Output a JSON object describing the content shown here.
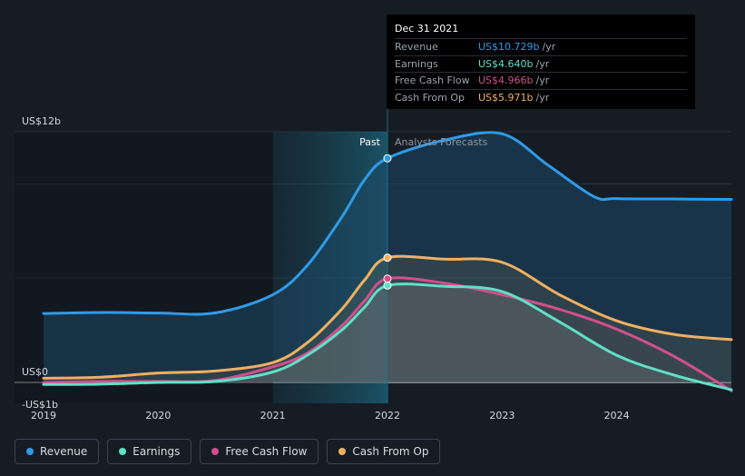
{
  "chart_data": {
    "type": "line",
    "x_ticks": [
      "2019",
      "2020",
      "2021",
      "2022",
      "2023",
      "2024"
    ],
    "y_labels": {
      "top": "US$12b",
      "zero": "US$0",
      "bottom": "-US$1b"
    },
    "ylim": [
      -1,
      12
    ],
    "divider_labels": {
      "past": "Past",
      "forecast": "Analysts Forecasts"
    },
    "series": [
      {
        "name": "Revenue",
        "color": "#2f9be8",
        "points": [
          [
            2019.0,
            3.3
          ],
          [
            2019.5,
            3.35
          ],
          [
            2020.0,
            3.32
          ],
          [
            2020.5,
            3.33
          ],
          [
            2021.0,
            4.2
          ],
          [
            2021.3,
            5.6
          ],
          [
            2021.6,
            7.9
          ],
          [
            2021.8,
            9.7
          ],
          [
            2022.0,
            10.729
          ],
          [
            2022.5,
            11.6
          ],
          [
            2023.0,
            11.9
          ],
          [
            2023.4,
            10.4
          ],
          [
            2023.8,
            8.9
          ],
          [
            2024.0,
            8.8
          ],
          [
            2024.5,
            8.78
          ],
          [
            2025.0,
            8.76
          ]
        ]
      },
      {
        "name": "Earnings",
        "color": "#5fe0c8",
        "points": [
          [
            2019.0,
            -0.1
          ],
          [
            2019.5,
            -0.08
          ],
          [
            2020.0,
            0.0
          ],
          [
            2020.5,
            0.05
          ],
          [
            2021.0,
            0.5
          ],
          [
            2021.3,
            1.3
          ],
          [
            2021.6,
            2.5
          ],
          [
            2021.8,
            3.6
          ],
          [
            2022.0,
            4.64
          ],
          [
            2022.5,
            4.6
          ],
          [
            2023.0,
            4.35
          ],
          [
            2023.5,
            2.9
          ],
          [
            2024.0,
            1.3
          ],
          [
            2024.5,
            0.35
          ],
          [
            2025.0,
            -0.35
          ]
        ]
      },
      {
        "name": "Free Cash Flow",
        "color": "#d24f8b",
        "points": [
          [
            2019.0,
            0.0
          ],
          [
            2019.5,
            0.05
          ],
          [
            2020.0,
            0.05
          ],
          [
            2020.5,
            0.1
          ],
          [
            2021.0,
            0.75
          ],
          [
            2021.3,
            1.4
          ],
          [
            2021.6,
            2.7
          ],
          [
            2021.8,
            3.9
          ],
          [
            2022.0,
            4.966
          ],
          [
            2022.5,
            4.75
          ],
          [
            2023.0,
            4.2
          ],
          [
            2023.5,
            3.5
          ],
          [
            2024.0,
            2.55
          ],
          [
            2024.5,
            1.25
          ],
          [
            2025.0,
            -0.4
          ]
        ]
      },
      {
        "name": "Cash From Op",
        "color": "#f0b060",
        "points": [
          [
            2019.0,
            0.2
          ],
          [
            2019.5,
            0.25
          ],
          [
            2020.0,
            0.45
          ],
          [
            2020.5,
            0.55
          ],
          [
            2021.0,
            0.95
          ],
          [
            2021.3,
            1.9
          ],
          [
            2021.6,
            3.5
          ],
          [
            2021.8,
            4.9
          ],
          [
            2022.0,
            5.971
          ],
          [
            2022.5,
            5.9
          ],
          [
            2023.0,
            5.75
          ],
          [
            2023.5,
            4.2
          ],
          [
            2024.0,
            2.95
          ],
          [
            2024.5,
            2.3
          ],
          [
            2025.0,
            2.05
          ]
        ]
      }
    ]
  },
  "tooltip": {
    "date": "Dec 31 2021",
    "rows": [
      {
        "label": "Revenue",
        "value": "US$10.729b",
        "unit": "/yr",
        "color": "#2f9be8"
      },
      {
        "label": "Earnings",
        "value": "US$4.640b",
        "unit": "/yr",
        "color": "#5fe0c8"
      },
      {
        "label": "Free Cash Flow",
        "value": "US$4.966b",
        "unit": "/yr",
        "color": "#d24f8b"
      },
      {
        "label": "Cash From Op",
        "value": "US$5.971b",
        "unit": "/yr",
        "color": "#f0b060"
      }
    ]
  },
  "legend": [
    {
      "label": "Revenue",
      "color": "#2f9be8"
    },
    {
      "label": "Earnings",
      "color": "#5fe0c8"
    },
    {
      "label": "Free Cash Flow",
      "color": "#d24f8b"
    },
    {
      "label": "Cash From Op",
      "color": "#f0b060"
    }
  ]
}
